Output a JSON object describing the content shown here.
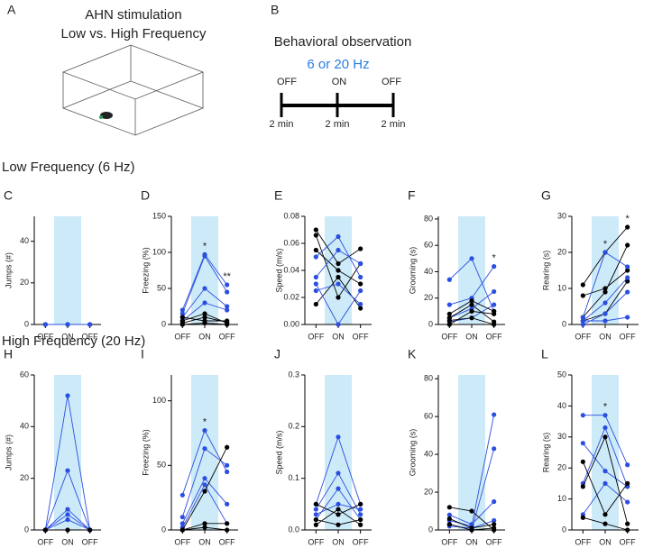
{
  "figure": {
    "panel_a": "A",
    "title_a": [
      "AHN stimulation",
      "Low vs. High Frequency"
    ],
    "panel_b": "B",
    "title_b": "Behavioral observation",
    "frequency": "6 or 20 Hz",
    "epochs": [
      "OFF",
      "ON",
      "OFF"
    ],
    "durations": [
      "2 min",
      "2 min",
      "2 min"
    ],
    "section_low": "Low Frequency (6 Hz)",
    "section_high": "High Frequency (20 Hz)"
  },
  "chart_data": [
    {
      "type": "line",
      "panel": "C",
      "y_label": "Jumps (#)",
      "categories": [
        "OFF",
        "ON",
        "OFF"
      ],
      "ylim": [
        0,
        52
      ],
      "yticks": [
        0,
        20,
        40
      ],
      "annotations": [
        null,
        null,
        null
      ],
      "series": [
        {
          "color": "#000000",
          "values": [
            0,
            0,
            0
          ]
        },
        {
          "color": "#2a4fe0",
          "values": [
            0,
            0,
            0
          ]
        }
      ]
    },
    {
      "type": "line",
      "panel": "D",
      "y_label": "Freezing (%)",
      "categories": [
        "OFF",
        "ON",
        "OFF"
      ],
      "ylim": [
        0,
        150
      ],
      "yticks": [
        0,
        50,
        100,
        150
      ],
      "annotations": [
        null,
        "*",
        "**"
      ],
      "series": [
        {
          "color": "#2a4fe0",
          "values": [
            20,
            97,
            55
          ]
        },
        {
          "color": "#2a4fe0",
          "values": [
            15,
            95,
            45
          ]
        },
        {
          "color": "#2a4fe0",
          "values": [
            10,
            50,
            25
          ]
        },
        {
          "color": "#2a4fe0",
          "values": [
            5,
            30,
            20
          ]
        },
        {
          "color": "#000000",
          "values": [
            10,
            5,
            5
          ]
        },
        {
          "color": "#000000",
          "values": [
            2,
            10,
            3
          ]
        },
        {
          "color": "#000000",
          "values": [
            0,
            2,
            0
          ]
        },
        {
          "color": "#000000",
          "values": [
            5,
            15,
            2
          ]
        }
      ]
    },
    {
      "type": "line",
      "panel": "E",
      "y_label": "Speed (m/s)",
      "categories": [
        "OFF",
        "ON",
        "OFF"
      ],
      "ylim": [
        0,
        0.08
      ],
      "yticks": [
        {
          "value": 0,
          "label": "0.00"
        },
        0.02,
        0.04,
        0.06,
        0.08
      ],
      "annotations": [
        null,
        null,
        null
      ],
      "series": [
        {
          "color": "#000000",
          "values": [
            0.07,
            0.045,
            0.056
          ]
        },
        {
          "color": "#000000",
          "values": [
            0.066,
            0.02,
            0.045
          ]
        },
        {
          "color": "#000000",
          "values": [
            0.055,
            0.04,
            0.03
          ]
        },
        {
          "color": "#000000",
          "values": [
            0.015,
            0.035,
            0.012
          ]
        },
        {
          "color": "#2a4fe0",
          "values": [
            0.05,
            0.065,
            0.035
          ]
        },
        {
          "color": "#2a4fe0",
          "values": [
            0.035,
            0.055,
            0.045
          ]
        },
        {
          "color": "#2a4fe0",
          "values": [
            0.03,
            0.0,
            0.025
          ]
        },
        {
          "color": "#2a4fe0",
          "values": [
            0.025,
            0.03,
            0.015
          ]
        }
      ]
    },
    {
      "type": "line",
      "panel": "F",
      "y_label": "Grooming (s)",
      "categories": [
        "OFF",
        "ON",
        "OFF"
      ],
      "ylim": [
        0,
        82
      ],
      "yticks": [
        0,
        20,
        40,
        60,
        80
      ],
      "annotations": [
        null,
        null,
        "*"
      ],
      "series": [
        {
          "color": "#2a4fe0",
          "values": [
            34,
            50,
            10
          ]
        },
        {
          "color": "#2a4fe0",
          "values": [
            15,
            20,
            44
          ]
        },
        {
          "color": "#2a4fe0",
          "values": [
            5,
            12,
            25
          ]
        },
        {
          "color": "#2a4fe0",
          "values": [
            2,
            5,
            15
          ]
        },
        {
          "color": "#000000",
          "values": [
            8,
            18,
            10
          ]
        },
        {
          "color": "#000000",
          "values": [
            5,
            15,
            2
          ]
        },
        {
          "color": "#000000",
          "values": [
            0,
            10,
            8
          ]
        },
        {
          "color": "#000000",
          "values": [
            3,
            5,
            0
          ]
        }
      ]
    },
    {
      "type": "line",
      "panel": "G",
      "y_label": "Rearing (s)",
      "categories": [
        "OFF",
        "ON",
        "OFF"
      ],
      "ylim": [
        0,
        30
      ],
      "yticks": [
        0,
        10,
        20,
        30
      ],
      "annotations": [
        null,
        "*",
        "*"
      ],
      "series": [
        {
          "color": "#000000",
          "values": [
            11,
            20,
            27
          ]
        },
        {
          "color": "#000000",
          "values": [
            8,
            10,
            15
          ]
        },
        {
          "color": "#000000",
          "values": [
            2,
            9,
            22
          ]
        },
        {
          "color": "#000000",
          "values": [
            1,
            3,
            12
          ]
        },
        {
          "color": "#2a4fe0",
          "values": [
            2,
            20,
            16
          ]
        },
        {
          "color": "#2a4fe0",
          "values": [
            1,
            6,
            13
          ]
        },
        {
          "color": "#2a4fe0",
          "values": [
            0,
            3,
            9
          ]
        },
        {
          "color": "#2a4fe0",
          "values": [
            1,
            1,
            2
          ]
        }
      ]
    },
    {
      "type": "line",
      "panel": "H",
      "y_label": "Jumps (#)",
      "categories": [
        "OFF",
        "ON",
        "OFF"
      ],
      "ylim": [
        0,
        60
      ],
      "yticks": [
        0,
        20,
        40,
        60
      ],
      "annotations": [
        null,
        null,
        null
      ],
      "series": [
        {
          "color": "#2a4fe0",
          "values": [
            0,
            52,
            0
          ]
        },
        {
          "color": "#2a4fe0",
          "values": [
            0,
            23,
            0
          ]
        },
        {
          "color": "#2a4fe0",
          "values": [
            0,
            8,
            0
          ]
        },
        {
          "color": "#2a4fe0",
          "values": [
            0,
            6,
            0
          ]
        },
        {
          "color": "#2a4fe0",
          "values": [
            0,
            4,
            0
          ]
        },
        {
          "color": "#000000",
          "values": [
            0,
            0,
            0
          ]
        }
      ]
    },
    {
      "type": "line",
      "panel": "I",
      "y_label": "Freezing (%)",
      "categories": [
        "OFF",
        "ON",
        "OFF"
      ],
      "ylim": [
        0,
        120
      ],
      "yticks": [
        0,
        50,
        100
      ],
      "annotations": [
        null,
        "*",
        null
      ],
      "series": [
        {
          "color": "#2a4fe0",
          "values": [
            27,
            77,
            45
          ]
        },
        {
          "color": "#2a4fe0",
          "values": [
            10,
            63,
            50
          ]
        },
        {
          "color": "#2a4fe0",
          "values": [
            5,
            40,
            20
          ]
        },
        {
          "color": "#2a4fe0",
          "values": [
            2,
            35,
            5
          ]
        },
        {
          "color": "#000000",
          "values": [
            0,
            30,
            64
          ]
        },
        {
          "color": "#000000",
          "values": [
            0,
            5,
            5
          ]
        },
        {
          "color": "#000000",
          "values": [
            0,
            2,
            0
          ]
        }
      ]
    },
    {
      "type": "line",
      "panel": "J",
      "y_label": "Speed (m/s)",
      "categories": [
        "OFF",
        "ON",
        "OFF"
      ],
      "ylim": [
        0,
        0.3
      ],
      "yticks": [
        {
          "value": 0,
          "label": "0.0"
        },
        0.1,
        0.2,
        0.3
      ],
      "annotations": [
        null,
        null,
        null
      ],
      "series": [
        {
          "color": "#2a4fe0",
          "values": [
            0.05,
            0.18,
            0.05
          ]
        },
        {
          "color": "#2a4fe0",
          "values": [
            0.04,
            0.11,
            0.03
          ]
        },
        {
          "color": "#2a4fe0",
          "values": [
            0.02,
            0.08,
            0.02
          ]
        },
        {
          "color": "#2a4fe0",
          "values": [
            0.03,
            0.05,
            0.04
          ]
        },
        {
          "color": "#000000",
          "values": [
            0.05,
            0.03,
            0.05
          ]
        },
        {
          "color": "#000000",
          "values": [
            0.02,
            0.01,
            0.02
          ]
        },
        {
          "color": "#000000",
          "values": [
            0.01,
            0.04,
            0.01
          ]
        }
      ]
    },
    {
      "type": "line",
      "panel": "K",
      "y_label": "Grooming (s)",
      "categories": [
        "OFF",
        "ON",
        "OFF"
      ],
      "ylim": [
        0,
        82
      ],
      "yticks": [
        0,
        20,
        40,
        60,
        80
      ],
      "annotations": [
        null,
        null,
        null
      ],
      "series": [
        {
          "color": "#2a4fe0",
          "values": [
            5,
            2,
            61
          ]
        },
        {
          "color": "#2a4fe0",
          "values": [
            3,
            0,
            43
          ]
        },
        {
          "color": "#2a4fe0",
          "values": [
            8,
            3,
            15
          ]
        },
        {
          "color": "#2a4fe0",
          "values": [
            2,
            1,
            5
          ]
        },
        {
          "color": "#000000",
          "values": [
            12,
            10,
            0
          ]
        },
        {
          "color": "#000000",
          "values": [
            6,
            1,
            3
          ]
        },
        {
          "color": "#000000",
          "values": [
            3,
            0,
            1
          ]
        }
      ]
    },
    {
      "type": "line",
      "panel": "L",
      "y_label": "Rearing (s)",
      "categories": [
        "OFF",
        "ON",
        "OFF"
      ],
      "ylim": [
        0,
        50
      ],
      "yticks": [
        0,
        10,
        20,
        30,
        40,
        50
      ],
      "annotations": [
        null,
        "*",
        null
      ],
      "series": [
        {
          "color": "#2a4fe0",
          "values": [
            37,
            37,
            21
          ]
        },
        {
          "color": "#2a4fe0",
          "values": [
            28,
            19,
            14
          ]
        },
        {
          "color": "#2a4fe0",
          "values": [
            15,
            33,
            14
          ]
        },
        {
          "color": "#2a4fe0",
          "values": [
            5,
            15,
            9
          ]
        },
        {
          "color": "#000000",
          "values": [
            22,
            5,
            15
          ]
        },
        {
          "color": "#000000",
          "values": [
            14,
            30,
            2
          ]
        },
        {
          "color": "#000000",
          "values": [
            4,
            2,
            0
          ]
        }
      ]
    }
  ]
}
